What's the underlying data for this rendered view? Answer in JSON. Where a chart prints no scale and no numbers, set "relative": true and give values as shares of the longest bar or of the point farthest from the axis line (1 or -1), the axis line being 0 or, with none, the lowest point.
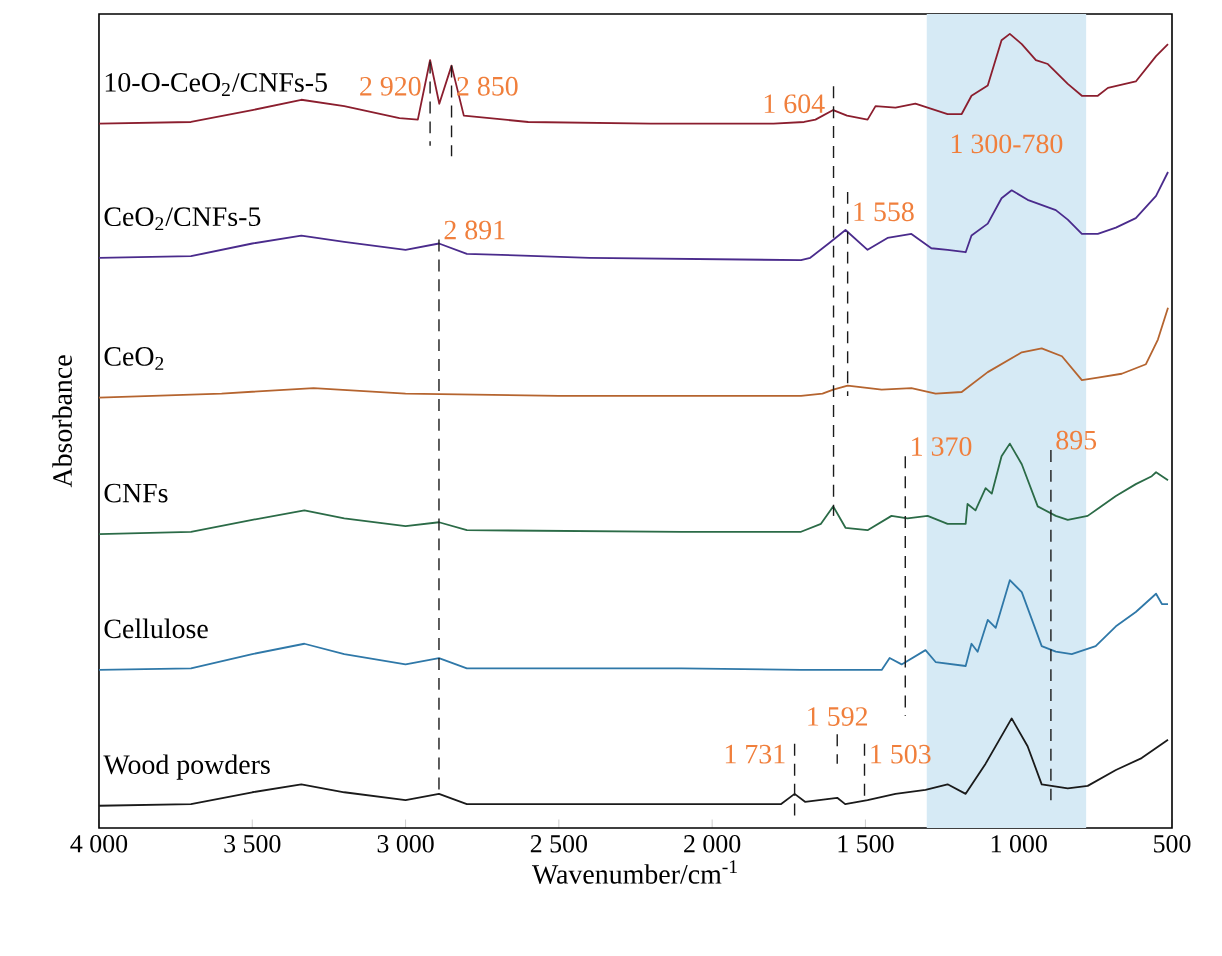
{
  "chart_data": {
    "type": "line",
    "relative": true,
    "xlabel": "Wavenumber/cm$^{-1}$",
    "ylabel": "Absorbance",
    "xlim": [
      4000,
      500
    ],
    "xticks": [
      {
        "value": 4000,
        "label": "4 000"
      },
      {
        "value": 3500,
        "label": "3 500"
      },
      {
        "value": 3000,
        "label": "3 000"
      },
      {
        "value": 2500,
        "label": "2 500"
      },
      {
        "value": 2000,
        "label": "2 000"
      },
      {
        "value": 1500,
        "label": "1 500"
      },
      {
        "value": 1000,
        "label": "1 000"
      },
      500
    ],
    "bands": [
      {
        "axis": "x",
        "from": 1300,
        "to": 780,
        "color": "#d6eaf5",
        "label": "1 300-780"
      }
    ],
    "series": [
      {
        "name": "10-O-CeO$_{2}$/CNFs-5",
        "color": "#8b1e2e",
        "x": [
          4000,
          3700,
          3500,
          3340,
          3200,
          3020,
          2960,
          2920,
          2890,
          2850,
          2810,
          2600,
          2200,
          1800,
          1700,
          1663,
          1605,
          1560,
          1493,
          1467,
          1402,
          1337,
          1297,
          1232,
          1186,
          1154,
          1101,
          1056,
          1029,
          990,
          944,
          905,
          840,
          794,
          742,
          709,
          618,
          552,
          513
        ],
        "values": [
          0.887,
          0.889,
          0.904,
          0.917,
          0.909,
          0.894,
          0.892,
          0.967,
          0.912,
          0.96,
          0.897,
          0.889,
          0.887,
          0.887,
          0.889,
          0.892,
          0.904,
          0.897,
          0.892,
          0.909,
          0.907,
          0.912,
          0.907,
          0.899,
          0.899,
          0.922,
          0.935,
          0.992,
          1.0,
          0.987,
          0.967,
          0.962,
          0.937,
          0.922,
          0.922,
          0.932,
          0.94,
          0.972,
          0.987
        ]
      },
      {
        "name": "CeO$_{2}$/CNFs-5",
        "color": "#4a2b8c",
        "x": [
          4000,
          3700,
          3500,
          3340,
          3200,
          3000,
          2891,
          2800,
          2400,
          1710,
          1680,
          1620,
          1565,
          1493,
          1428,
          1350,
          1285,
          1232,
          1173,
          1154,
          1101,
          1056,
          1023,
          971,
          879,
          840,
          794,
          742,
          683,
          618,
          552,
          513
        ],
        "values": [
          0.718,
          0.72,
          0.736,
          0.746,
          0.738,
          0.728,
          0.736,
          0.723,
          0.718,
          0.715,
          0.718,
          0.736,
          0.753,
          0.728,
          0.743,
          0.748,
          0.73,
          0.728,
          0.725,
          0.746,
          0.761,
          0.793,
          0.803,
          0.791,
          0.778,
          0.766,
          0.748,
          0.748,
          0.756,
          0.768,
          0.796,
          0.826
        ]
      },
      {
        "name": "CeO$_{2}$",
        "color": "#b5642f",
        "x": [
          4000,
          3600,
          3300,
          3000,
          2500,
          1710,
          1640,
          1605,
          1558,
          1447,
          1350,
          1271,
          1186,
          1101,
          990,
          925,
          859,
          794,
          742,
          664,
          585,
          546,
          513
        ],
        "values": [
          0.542,
          0.547,
          0.554,
          0.547,
          0.544,
          0.544,
          0.547,
          0.552,
          0.557,
          0.552,
          0.554,
          0.547,
          0.549,
          0.574,
          0.599,
          0.604,
          0.594,
          0.564,
          0.567,
          0.572,
          0.584,
          0.615,
          0.655
        ]
      },
      {
        "name": "CNFs",
        "color": "#2b6b47",
        "x": [
          4000,
          3700,
          3500,
          3330,
          3200,
          3000,
          2891,
          2800,
          2100,
          1710,
          1645,
          1605,
          1565,
          1493,
          1415,
          1363,
          1297,
          1232,
          1173,
          1167,
          1141,
          1108,
          1088,
          1056,
          1029,
          990,
          938,
          879,
          840,
          775,
          683,
          618,
          566,
          552,
          513
        ],
        "values": [
          0.37,
          0.373,
          0.388,
          0.4,
          0.39,
          0.38,
          0.385,
          0.375,
          0.373,
          0.373,
          0.383,
          0.405,
          0.378,
          0.375,
          0.393,
          0.39,
          0.393,
          0.383,
          0.383,
          0.408,
          0.4,
          0.428,
          0.421,
          0.468,
          0.484,
          0.458,
          0.405,
          0.393,
          0.388,
          0.393,
          0.418,
          0.433,
          0.443,
          0.448,
          0.438
        ]
      },
      {
        "name": "Cellulose",
        "color": "#2f78a8",
        "x": [
          4000,
          3700,
          3500,
          3330,
          3200,
          3000,
          2891,
          2800,
          2100,
          1710,
          1447,
          1421,
          1382,
          1304,
          1271,
          1173,
          1154,
          1134,
          1101,
          1075,
          1029,
          990,
          925,
          879,
          827,
          749,
          683,
          618,
          552,
          533,
          513
        ],
        "values": [
          0.199,
          0.201,
          0.219,
          0.232,
          0.219,
          0.206,
          0.214,
          0.201,
          0.201,
          0.199,
          0.199,
          0.214,
          0.206,
          0.224,
          0.209,
          0.204,
          0.232,
          0.222,
          0.262,
          0.252,
          0.312,
          0.297,
          0.229,
          0.222,
          0.219,
          0.229,
          0.254,
          0.272,
          0.295,
          0.282,
          0.282
        ]
      },
      {
        "name": "Wood powders",
        "color": "#1a1a1a",
        "x": [
          4000,
          3700,
          3500,
          3340,
          3200,
          3000,
          2891,
          2800,
          2100,
          1776,
          1731,
          1697,
          1592,
          1566,
          1493,
          1402,
          1304,
          1232,
          1173,
          1108,
          1023,
          971,
          925,
          840,
          775,
          683,
          599,
          513
        ],
        "values": [
          0.028,
          0.03,
          0.045,
          0.055,
          0.045,
          0.035,
          0.043,
          0.03,
          0.03,
          0.03,
          0.043,
          0.033,
          0.038,
          0.03,
          0.035,
          0.043,
          0.048,
          0.055,
          0.043,
          0.081,
          0.138,
          0.103,
          0.055,
          0.05,
          0.053,
          0.073,
          0.088,
          0.111
        ]
      },
      {
        "type": "line",
        "line_style": "dashed",
        "color": "#1a1a1a",
        "x": [
          2920,
          2920
        ],
        "values": [
          0.965,
          0.859
        ]
      },
      {
        "type": "line",
        "line_style": "dashed",
        "color": "#1a1a1a",
        "x": [
          2850,
          2850
        ],
        "values": [
          0.96,
          0.846
        ]
      },
      {
        "type": "line",
        "line_style": "dashed",
        "color": "#1a1a1a",
        "x": [
          2891,
          2891
        ],
        "values": [
          0.741,
          0.04
        ]
      },
      {
        "type": "line",
        "line_style": "dashed",
        "color": "#1a1a1a",
        "x": [
          1604,
          1604
        ],
        "values": [
          0.934,
          0.393
        ]
      },
      {
        "type": "line",
        "line_style": "dashed",
        "color": "#1a1a1a",
        "x": [
          1558,
          1558
        ],
        "values": [
          0.801,
          0.544
        ]
      },
      {
        "type": "line",
        "line_style": "dashed",
        "color": "#1a1a1a",
        "x": [
          1370,
          1370
        ],
        "values": [
          0.468,
          0.141
        ]
      },
      {
        "type": "line",
        "line_style": "dashed",
        "color": "#1a1a1a",
        "x": [
          895,
          895
        ],
        "values": [
          0.476,
          0.035
        ]
      },
      {
        "type": "line",
        "line_style": "dashed",
        "color": "#1a1a1a",
        "x": [
          1731,
          1731
        ],
        "values": [
          0.106,
          0.015
        ]
      },
      {
        "type": "line",
        "line_style": "dashed",
        "color": "#1a1a1a",
        "x": [
          1592,
          1592
        ],
        "values": [
          0.118,
          0.081
        ]
      },
      {
        "type": "line",
        "line_style": "dashed",
        "color": "#1a1a1a",
        "x": [
          1503,
          1503
        ],
        "values": [
          0.106,
          0.035
        ]
      }
    ],
    "annotations": [
      {
        "text": "2 920",
        "x": 2920,
        "y": 0.934
      },
      {
        "text": "2 850",
        "x": 2850,
        "y": 0.934
      },
      {
        "text": "2 891",
        "x": 2891,
        "y": 0.753
      },
      {
        "text": "1 604",
        "x": 1604,
        "y": 0.912
      },
      {
        "text": "1 558",
        "x": 1558,
        "y": 0.776
      },
      {
        "text": "1 370",
        "x": 1370,
        "y": 0.468
      },
      {
        "text": "895",
        "x": 895,
        "y": 0.476
      },
      {
        "text": "1 731",
        "x": 1731,
        "y": 0.093
      },
      {
        "text": "1 592",
        "x": 1592,
        "y": 0.118
      },
      {
        "text": "1 503",
        "x": 1503,
        "y": 0.093
      }
    ]
  }
}
